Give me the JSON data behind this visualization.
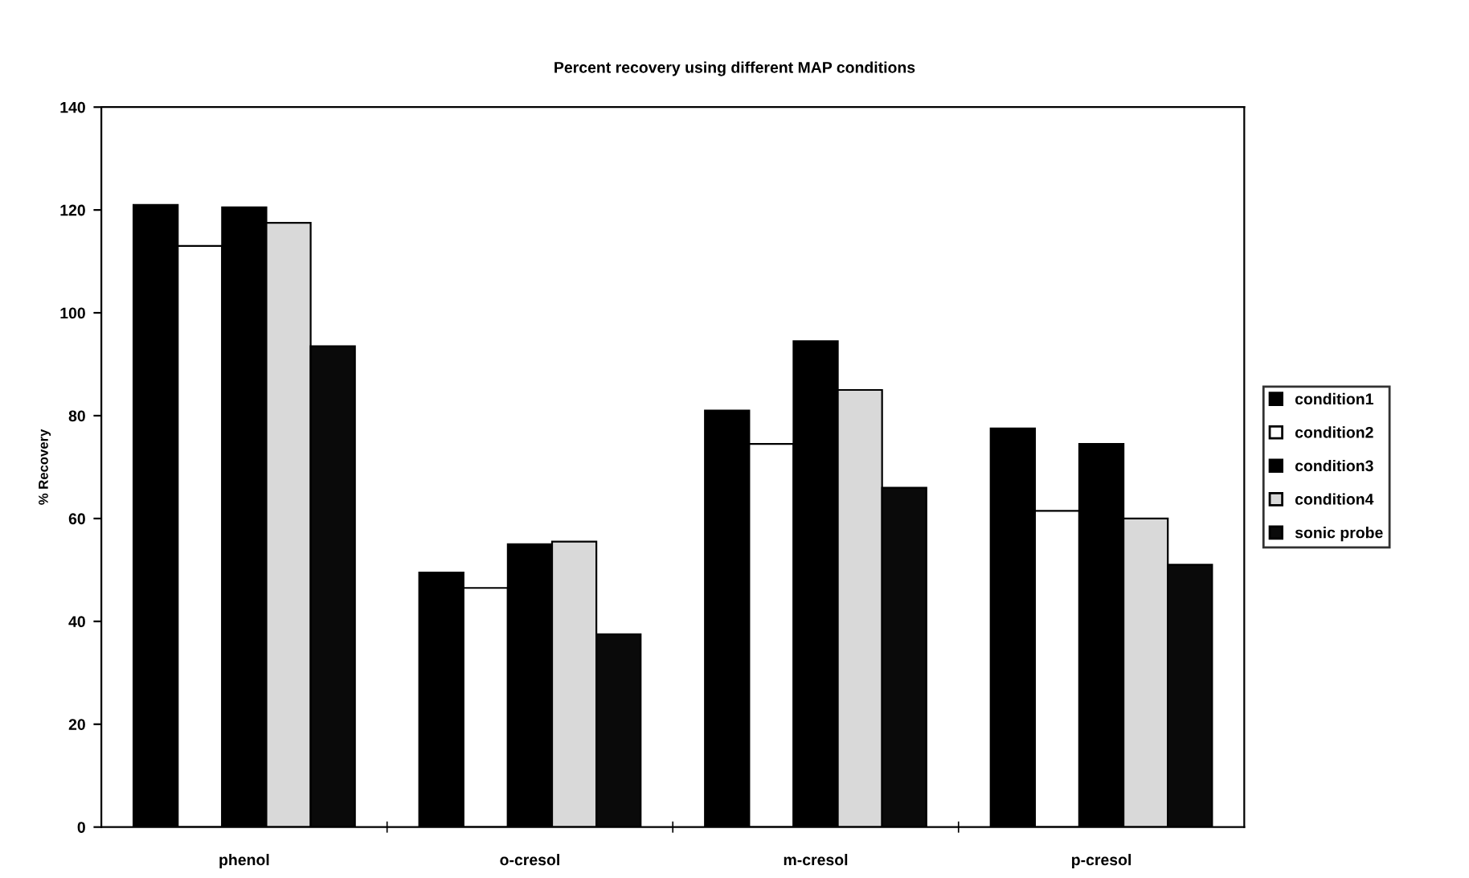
{
  "chart_data": {
    "type": "bar",
    "title": "Percent recovery using different MAP conditions",
    "ylabel": "% Recovery",
    "categories": [
      "phenol",
      "o-cresol",
      "m-cresol",
      "p-cresol"
    ],
    "series": [
      {
        "name": "condition1",
        "color": "#000000",
        "values": [
          121,
          49.5,
          81,
          77.5
        ]
      },
      {
        "name": "condition2",
        "color": "#ffffff",
        "values": [
          113,
          46.5,
          74.5,
          61.5
        ]
      },
      {
        "name": "condition3",
        "color": "#000000",
        "values": [
          120.5,
          55,
          94.5,
          74.5
        ]
      },
      {
        "name": "condition4",
        "color": "#d9d9d9",
        "values": [
          117.5,
          55.5,
          85,
          60
        ]
      },
      {
        "name": "sonic probe",
        "color": "#0a0a0a",
        "values": [
          93.5,
          37.5,
          66,
          51
        ]
      }
    ],
    "ylim": [
      0,
      140
    ],
    "yticks": [
      0,
      20,
      40,
      60,
      80,
      100,
      120,
      140
    ],
    "grid": false,
    "legend": "right"
  }
}
